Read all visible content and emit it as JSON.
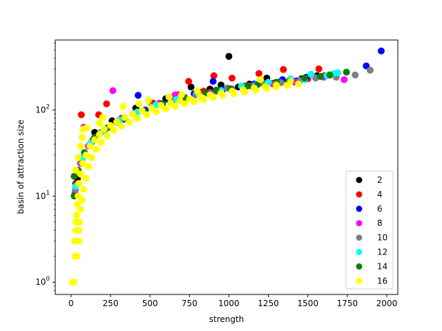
{
  "chart_data": {
    "type": "scatter",
    "title": "",
    "xlabel": "strength",
    "ylabel": "basin of attraction size",
    "xlim": [
      -100,
      2070
    ],
    "ylim": [
      0.72,
      650
    ],
    "yscale": "log",
    "grid": false,
    "legend_placement": "lower-right",
    "x_ticks": [
      0,
      250,
      500,
      750,
      1000,
      1250,
      1500,
      1750,
      2000
    ],
    "x_tick_labels": [
      "0",
      "250",
      "500",
      "750",
      "1000",
      "1250",
      "1500",
      "1750",
      "2000"
    ],
    "y_ticks": [
      1,
      10,
      100
    ],
    "y_tick_labels": [
      "10",
      "10",
      "10"
    ],
    "y_tick_exponents": [
      "0",
      "1",
      "2"
    ],
    "series": [
      {
        "name": "2",
        "color": "#000000",
        "points": [
          [
            1000,
            420
          ],
          [
            760,
            185
          ],
          [
            950,
            195
          ],
          [
            1240,
            235
          ],
          [
            1130,
            200
          ],
          [
            820,
            160
          ],
          [
            40,
            16
          ],
          [
            30,
            14
          ],
          [
            150,
            55
          ],
          [
            260,
            75
          ],
          [
            410,
            105
          ],
          [
            600,
            135
          ],
          [
            880,
            175
          ],
          [
            1060,
            185
          ],
          [
            1320,
            210
          ],
          [
            1460,
            230
          ],
          [
            1560,
            250
          ]
        ]
      },
      {
        "name": "4",
        "color": "#ff0000",
        "points": [
          [
            65,
            88
          ],
          [
            175,
            88
          ],
          [
            225,
            118
          ],
          [
            745,
            215
          ],
          [
            905,
            250
          ],
          [
            1190,
            265
          ],
          [
            1345,
            295
          ],
          [
            1570,
            300
          ],
          [
            1605,
            250
          ],
          [
            1020,
            235
          ],
          [
            35,
            14
          ],
          [
            90,
            30
          ],
          [
            140,
            45
          ],
          [
            320,
            80
          ],
          [
            520,
            120
          ],
          [
            680,
            150
          ],
          [
            840,
            165
          ],
          [
            1100,
            190
          ],
          [
            1280,
            205
          ],
          [
            1420,
            215
          ],
          [
            1500,
            230
          ]
        ]
      },
      {
        "name": "6",
        "color": "#0000ff",
        "points": [
          [
            1965,
            485
          ],
          [
            1870,
            325
          ],
          [
            425,
            148
          ],
          [
            900,
            215
          ],
          [
            1160,
            200
          ],
          [
            1340,
            225
          ],
          [
            1490,
            240
          ],
          [
            30,
            13
          ],
          [
            70,
            27
          ],
          [
            130,
            42
          ],
          [
            210,
            58
          ],
          [
            330,
            78
          ],
          [
            470,
            100
          ],
          [
            620,
            130
          ],
          [
            780,
            155
          ],
          [
            960,
            172
          ],
          [
            1230,
            195
          ],
          [
            1430,
            218
          ],
          [
            1550,
            240
          ],
          [
            1640,
            255
          ]
        ]
      },
      {
        "name": "8",
        "color": "#ff00ff",
        "points": [
          [
            80,
            63
          ],
          [
            265,
            168
          ],
          [
            660,
            150
          ],
          [
            1730,
            225
          ],
          [
            1420,
            210
          ],
          [
            1140,
            190
          ],
          [
            25,
            11
          ],
          [
            60,
            24
          ],
          [
            110,
            38
          ],
          [
            200,
            56
          ],
          [
            300,
            75
          ],
          [
            400,
            92
          ],
          [
            560,
            120
          ],
          [
            720,
            140
          ],
          [
            880,
            160
          ],
          [
            1020,
            175
          ],
          [
            1280,
            200
          ],
          [
            1600,
            240
          ]
        ]
      },
      {
        "name": "10",
        "color": "#808080",
        "points": [
          [
            1895,
            290
          ],
          [
            1800,
            255
          ],
          [
            1680,
            240
          ],
          [
            1450,
            220
          ],
          [
            1210,
            205
          ],
          [
            990,
            180
          ],
          [
            28,
            12
          ],
          [
            65,
            25
          ],
          [
            120,
            40
          ],
          [
            190,
            55
          ],
          [
            290,
            72
          ],
          [
            390,
            90
          ],
          [
            510,
            110
          ],
          [
            640,
            128
          ],
          [
            790,
            150
          ],
          [
            920,
            165
          ],
          [
            1110,
            188
          ],
          [
            1330,
            208
          ],
          [
            1550,
            235
          ]
        ]
      },
      {
        "name": "12",
        "color": "#00ffff",
        "points": [
          [
            1665,
            265
          ],
          [
            1690,
            270
          ],
          [
            1520,
            260
          ],
          [
            1390,
            230
          ],
          [
            1250,
            210
          ],
          [
            1080,
            190
          ],
          [
            30,
            13
          ],
          [
            75,
            28
          ],
          [
            125,
            41
          ],
          [
            205,
            57
          ],
          [
            310,
            76
          ],
          [
            420,
            95
          ],
          [
            540,
            115
          ],
          [
            670,
            133
          ],
          [
            810,
            152
          ],
          [
            950,
            168
          ],
          [
            1170,
            195
          ],
          [
            1480,
            225
          ],
          [
            1620,
            250
          ]
        ]
      },
      {
        "name": "14",
        "color": "#008000",
        "points": [
          [
            1745,
            275
          ],
          [
            1640,
            255
          ],
          [
            1480,
            235
          ],
          [
            1300,
            210
          ],
          [
            1120,
            192
          ],
          [
            920,
            170
          ],
          [
            20,
            17
          ],
          [
            35,
            5
          ],
          [
            20,
            10
          ],
          [
            45,
            20
          ],
          [
            85,
            32
          ],
          [
            150,
            48
          ],
          [
            230,
            62
          ],
          [
            340,
            80
          ],
          [
            460,
            98
          ],
          [
            580,
            118
          ],
          [
            720,
            138
          ],
          [
            860,
            158
          ],
          [
            1010,
            176
          ],
          [
            1180,
            196
          ],
          [
            1380,
            215
          ],
          [
            1580,
            245
          ]
        ]
      },
      {
        "name": "16",
        "color": "#ffff00",
        "points": [
          [
            10,
            1
          ],
          [
            18,
            1
          ],
          [
            25,
            2
          ],
          [
            38,
            2
          ],
          [
            22,
            3
          ],
          [
            50,
            3
          ],
          [
            30,
            4
          ],
          [
            50,
            4
          ],
          [
            32,
            5
          ],
          [
            55,
            5
          ],
          [
            35,
            6
          ],
          [
            60,
            7
          ],
          [
            40,
            8
          ],
          [
            70,
            9
          ],
          [
            45,
            10
          ],
          [
            80,
            12
          ],
          [
            50,
            14
          ],
          [
            95,
            16
          ],
          [
            60,
            18
          ],
          [
            110,
            22
          ],
          [
            75,
            24
          ],
          [
            130,
            28
          ],
          [
            95,
            30
          ],
          [
            160,
            35
          ],
          [
            120,
            38
          ],
          [
            190,
            42
          ],
          [
            150,
            45
          ],
          [
            230,
            50
          ],
          [
            180,
            52
          ],
          [
            270,
            58
          ],
          [
            210,
            60
          ],
          [
            320,
            65
          ],
          [
            250,
            66
          ],
          [
            370,
            72
          ],
          [
            290,
            73
          ],
          [
            420,
            80
          ],
          [
            340,
            82
          ],
          [
            480,
            88
          ],
          [
            390,
            90
          ],
          [
            540,
            95
          ],
          [
            450,
            98
          ],
          [
            600,
            103
          ],
          [
            510,
            106
          ],
          [
            660,
            110
          ],
          [
            570,
            113
          ],
          [
            720,
            118
          ],
          [
            630,
            120
          ],
          [
            780,
            125
          ],
          [
            690,
            128
          ],
          [
            840,
            132
          ],
          [
            750,
            134
          ],
          [
            900,
            140
          ],
          [
            820,
            142
          ],
          [
            960,
            148
          ],
          [
            880,
            150
          ],
          [
            1030,
            155
          ],
          [
            950,
            158
          ],
          [
            1100,
            162
          ],
          [
            1020,
            165
          ],
          [
            1170,
            170
          ],
          [
            1090,
            172
          ],
          [
            1240,
            178
          ],
          [
            1160,
            180
          ],
          [
            1300,
            185
          ],
          [
            1230,
            187
          ],
          [
            1370,
            192
          ],
          [
            1300,
            195
          ],
          [
            1440,
            200
          ],
          [
            60,
            38
          ],
          [
            70,
            48
          ],
          [
            100,
            62
          ],
          [
            180,
            70
          ],
          [
            200,
            82
          ],
          [
            330,
            110
          ],
          [
            430,
            118
          ],
          [
            490,
            130
          ],
          [
            620,
            142
          ],
          [
            700,
            150
          ],
          [
            800,
            165
          ],
          [
            1200,
            225
          ],
          [
            1390,
            215
          ],
          [
            75,
            60
          ],
          [
            30,
            20
          ],
          [
            45,
            28
          ]
        ]
      }
    ]
  }
}
